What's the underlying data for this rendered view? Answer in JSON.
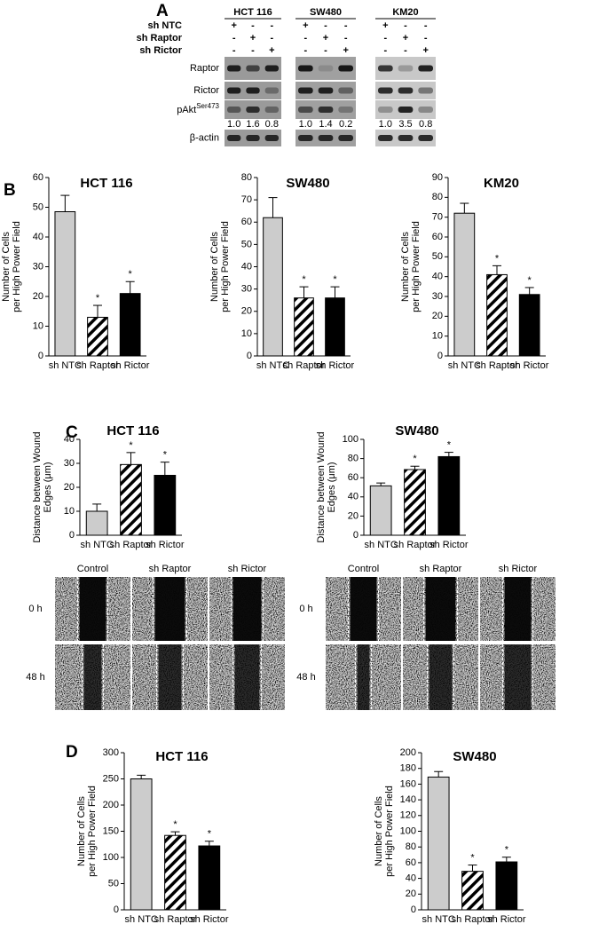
{
  "panels": [
    "A",
    "B",
    "C",
    "D"
  ],
  "blot": {
    "conditions": [
      "sh NTC",
      "sh Raptor",
      "sh Rictor"
    ],
    "rows": [
      "Raptor",
      "Rictor",
      "pAkt",
      "β-actin"
    ],
    "pakt_superscript": "Ser473",
    "cell_lines": [
      {
        "name": "HCT 116",
        "signs": [
          [
            "+",
            "-",
            "-"
          ],
          [
            "-",
            "+",
            "-"
          ],
          [
            "-",
            "-",
            "+"
          ]
        ],
        "pakt_ratios": [
          "1.0",
          "1.6",
          "0.8"
        ]
      },
      {
        "name": "SW480",
        "signs": [
          [
            "+",
            "-",
            "-"
          ],
          [
            "-",
            "+",
            "-"
          ],
          [
            "-",
            "-",
            "+"
          ]
        ],
        "pakt_ratios": [
          "1.0",
          "1.4",
          "0.2"
        ]
      },
      {
        "name": "KM20",
        "signs": [
          [
            "+",
            "-",
            "-"
          ],
          [
            "-",
            "+",
            "-"
          ],
          [
            "-",
            "-",
            "+"
          ]
        ],
        "pakt_ratios": [
          "1.0",
          "3.5",
          "0.8"
        ]
      }
    ]
  },
  "wound": {
    "columns": [
      "Control",
      "sh Raptor",
      "sh Rictor"
    ],
    "rows": [
      "0 h",
      "48 h"
    ]
  },
  "chart_data": [
    {
      "type": "bar",
      "title": "HCT 116",
      "y_label": [
        "Number of Cells",
        "per High Power Field"
      ],
      "categories": [
        "sh NTC",
        "sh Raptor",
        "sh Rictor"
      ],
      "values": [
        48.5,
        13,
        21
      ],
      "errors": [
        5.5,
        4,
        4
      ],
      "significance": [
        null,
        "*",
        "*"
      ],
      "fills": [
        "#cccccc",
        "hatch",
        "#000000"
      ],
      "ylim": [
        0,
        60
      ],
      "yticks": [
        0,
        10,
        20,
        30,
        40,
        50,
        60
      ]
    },
    {
      "type": "bar",
      "title": "SW480",
      "y_label": [
        "Number of Cells",
        "per High Power Field"
      ],
      "categories": [
        "sh NTC",
        "sh Raptor",
        "sh Rictor"
      ],
      "values": [
        62,
        26,
        26
      ],
      "errors": [
        9,
        5,
        5
      ],
      "significance": [
        null,
        "*",
        "*"
      ],
      "fills": [
        "#cccccc",
        "hatch",
        "#000000"
      ],
      "ylim": [
        0,
        80
      ],
      "yticks": [
        0,
        10,
        20,
        30,
        40,
        50,
        60,
        70,
        80
      ]
    },
    {
      "type": "bar",
      "title": "KM20",
      "y_label": [
        "Number of Cells",
        "per High Power Field"
      ],
      "categories": [
        "sh NTC",
        "sh Raptor",
        "sh Rictor"
      ],
      "values": [
        72,
        41,
        31
      ],
      "errors": [
        5,
        4.5,
        3.5
      ],
      "significance": [
        null,
        "*",
        "*"
      ],
      "fills": [
        "#cccccc",
        "hatch",
        "#000000"
      ],
      "ylim": [
        0,
        90
      ],
      "yticks": [
        0,
        10,
        20,
        30,
        40,
        50,
        60,
        70,
        80,
        90
      ]
    },
    {
      "type": "bar",
      "title": "HCT 116",
      "y_label": [
        "Distance between Wound",
        "Edges (μm)"
      ],
      "categories": [
        "sh NTC",
        "sh Raptor",
        "sh Rictor"
      ],
      "values": [
        10,
        29.5,
        25
      ],
      "errors": [
        3,
        5,
        5.5
      ],
      "significance": [
        null,
        "*",
        "*"
      ],
      "fills": [
        "#cccccc",
        "hatch",
        "#000000"
      ],
      "ylim": [
        0,
        40
      ],
      "yticks": [
        0,
        10,
        20,
        30,
        40
      ]
    },
    {
      "type": "bar",
      "title": "SW480",
      "y_label": [
        "Distance between Wound",
        "Edges (μm)"
      ],
      "categories": [
        "sh NTC",
        "sh Raptor",
        "sh Rictor"
      ],
      "values": [
        51.5,
        68.5,
        82
      ],
      "errors": [
        3,
        3.5,
        4.5
      ],
      "significance": [
        null,
        "*",
        "*"
      ],
      "fills": [
        "#cccccc",
        "hatch",
        "#000000"
      ],
      "ylim": [
        0,
        100
      ],
      "yticks": [
        0,
        20,
        40,
        60,
        80,
        100
      ]
    },
    {
      "type": "bar",
      "title": "HCT 116",
      "y_label": [
        "Number of Cells",
        "per High Power Field"
      ],
      "categories": [
        "sh NTC",
        "sh Raptor",
        "sh Rictor"
      ],
      "values": [
        250,
        142,
        122
      ],
      "errors": [
        7,
        7,
        9
      ],
      "significance": [
        null,
        "*",
        "*"
      ],
      "fills": [
        "#cccccc",
        "hatch",
        "#000000"
      ],
      "ylim": [
        0,
        300
      ],
      "yticks": [
        0,
        50,
        100,
        150,
        200,
        250,
        300
      ]
    },
    {
      "type": "bar",
      "title": "SW480",
      "y_label": [
        "Number of Cells",
        "per High Power Field"
      ],
      "categories": [
        "sh NTC",
        "sh Raptor",
        "sh Rictor"
      ],
      "values": [
        169,
        49,
        61
      ],
      "errors": [
        7,
        8,
        6
      ],
      "significance": [
        null,
        "*",
        "*"
      ],
      "fills": [
        "#cccccc",
        "hatch",
        "#000000"
      ],
      "ylim": [
        0,
        200
      ],
      "yticks": [
        0,
        20,
        40,
        60,
        80,
        100,
        120,
        140,
        160,
        180,
        200
      ]
    }
  ]
}
